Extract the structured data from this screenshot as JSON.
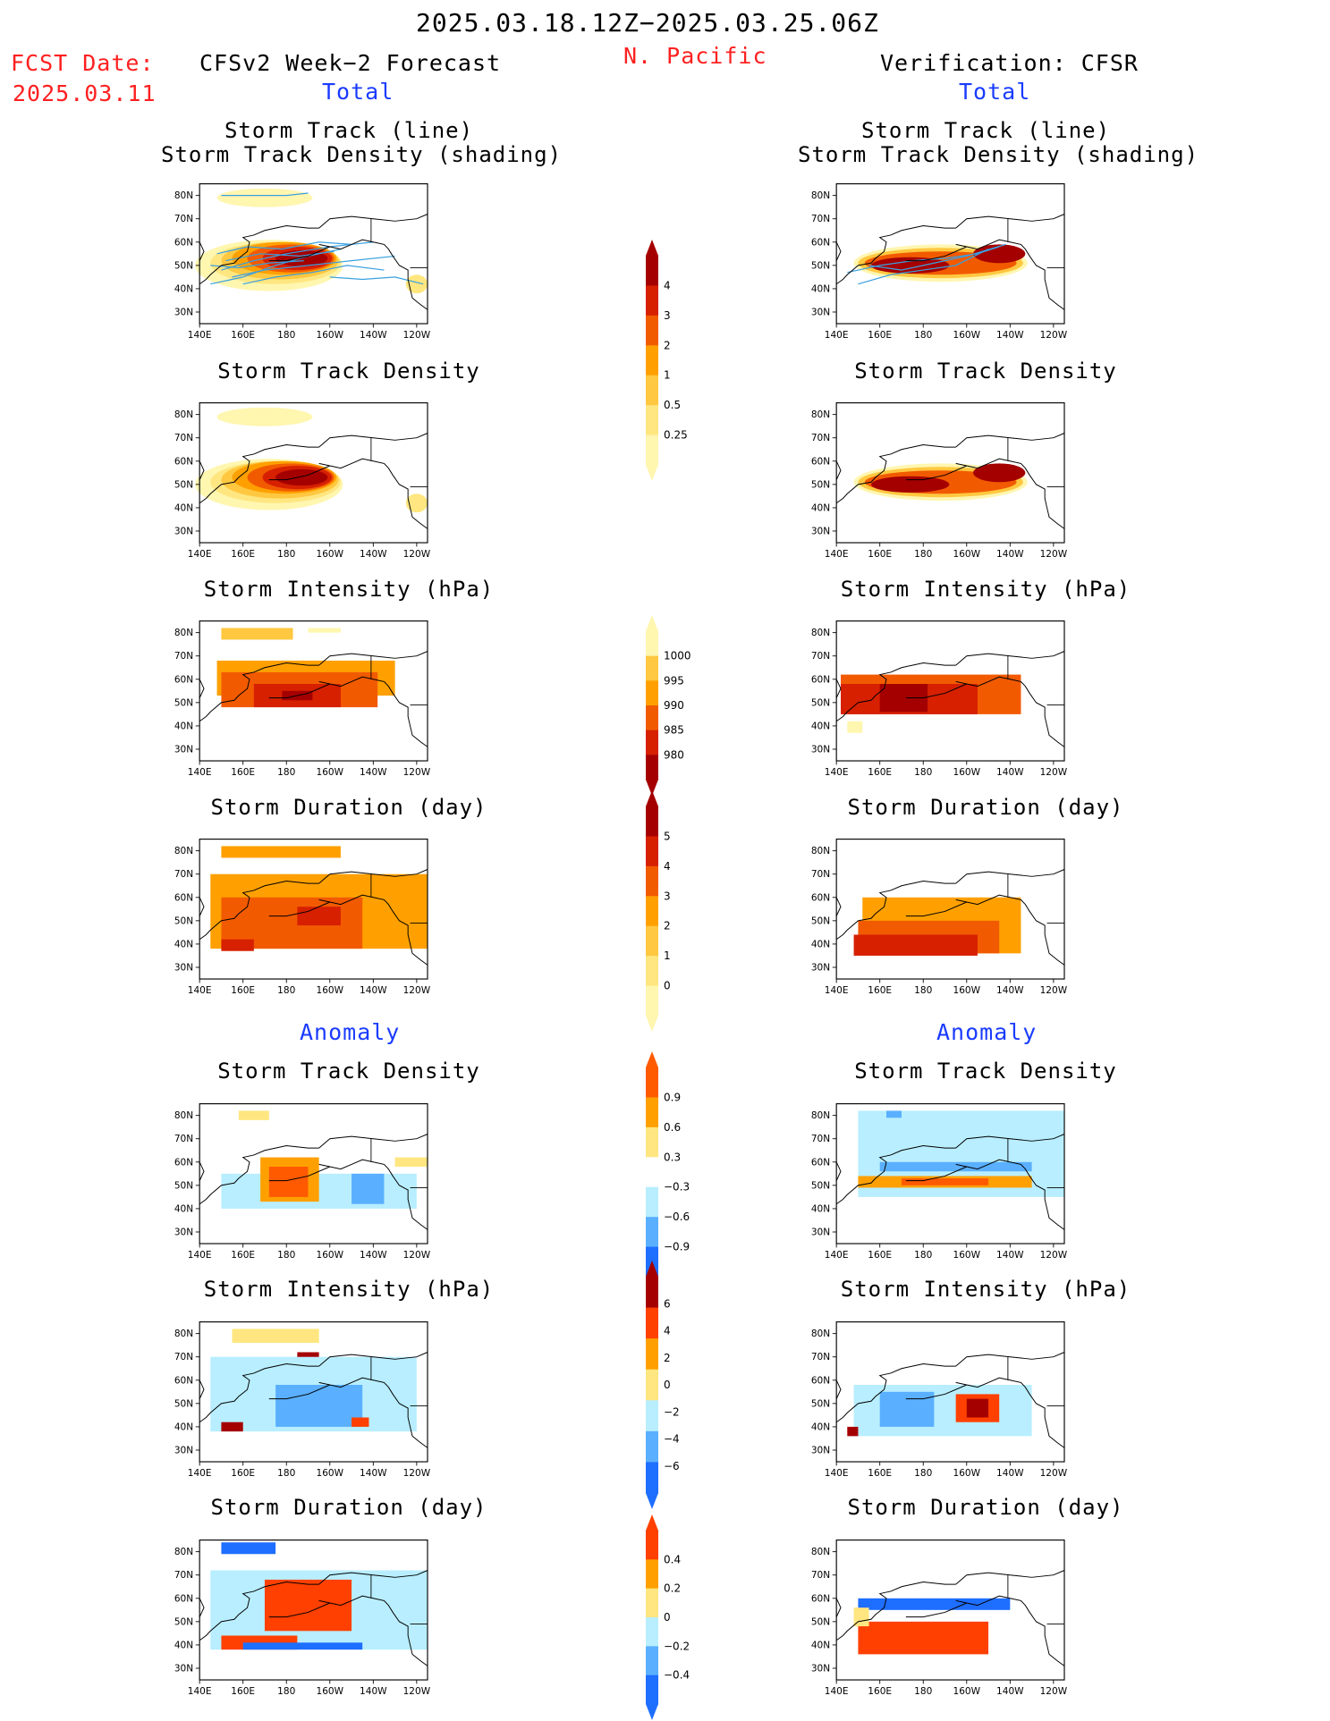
{
  "header": {
    "date_range": "2025.03.18.12Z−2025.03.25.06Z",
    "region": "N. Pacific",
    "fcst_label": "FCST Date:",
    "fcst_date": "2025.03.11",
    "left_title": "CFSv2 Week−2 Forecast",
    "right_title": "Verification: CFSR",
    "total_label": "Total",
    "anomaly_label": "Anomaly"
  },
  "axes": {
    "lat_labels": [
      "80N",
      "70N",
      "60N",
      "50N",
      "40N",
      "30N"
    ],
    "lon_labels": [
      "140E",
      "160E",
      "180",
      "160W",
      "140W",
      "120W"
    ]
  },
  "panels": {
    "left": [
      {
        "title": "Storm Track (line)\nStorm Track Density (shading)",
        "field": "track_density",
        "section": "total",
        "overlay_tracks": true
      },
      {
        "title": "Storm Track Density",
        "field": "track_density",
        "section": "total"
      },
      {
        "title": "Storm Intensity (hPa)",
        "field": "intensity",
        "section": "total"
      },
      {
        "title": "Storm Duration (day)",
        "field": "duration",
        "section": "total"
      },
      {
        "title": "Storm Track Density",
        "field": "track_density_anom",
        "section": "anomaly"
      },
      {
        "title": "Storm Intensity (hPa)",
        "field": "intensity_anom",
        "section": "anomaly"
      },
      {
        "title": "Storm Duration (day)",
        "field": "duration_anom",
        "section": "anomaly"
      }
    ],
    "right": [
      {
        "title": "Storm Track (line)\nStorm Track Density (shading)",
        "field": "track_density",
        "section": "total",
        "overlay_tracks": true
      },
      {
        "title": "Storm Track Density",
        "field": "track_density",
        "section": "total"
      },
      {
        "title": "Storm Intensity (hPa)",
        "field": "intensity",
        "section": "total"
      },
      {
        "title": "Storm Duration (day)",
        "field": "duration",
        "section": "total"
      },
      {
        "title": "Storm Track Density",
        "field": "track_density_anom",
        "section": "anomaly"
      },
      {
        "title": "Storm Intensity (hPa)",
        "field": "intensity_anom",
        "section": "anomaly"
      },
      {
        "title": "Storm Duration (day)",
        "field": "duration_anom",
        "section": "anomaly"
      }
    ]
  },
  "colorbars": [
    {
      "name": "track-density",
      "labels": [
        "4",
        "3",
        "2",
        "1",
        "0.5",
        "0.25"
      ],
      "colors": [
        "#a50000",
        "#d62000",
        "#f25a00",
        "#ffa000",
        "#ffc840",
        "#ffe680",
        "#fff6b0"
      ]
    },
    {
      "name": "intensity",
      "labels": [
        "1000",
        "995",
        "990",
        "985",
        "980"
      ],
      "colors": [
        "#fff6b0",
        "#ffc840",
        "#ffa000",
        "#f25a00",
        "#d62000",
        "#a50000"
      ]
    },
    {
      "name": "duration",
      "labels": [
        "5",
        "4",
        "3",
        "2",
        "1",
        "0"
      ],
      "colors": [
        "#a50000",
        "#d62000",
        "#f25a00",
        "#ffa000",
        "#ffc840",
        "#ffe680",
        "#fff6b0"
      ]
    },
    {
      "name": "density-anomaly",
      "labels": [
        "0.9",
        "0.6",
        "0.3",
        "−0.3",
        "−0.6",
        "−0.9"
      ],
      "colors": [
        "#ff5a00",
        "#ffa000",
        "#ffe680",
        "#ffffff",
        "#b8eeff",
        "#5ab0ff",
        "#1e6eff"
      ]
    },
    {
      "name": "intensity-anomaly",
      "labels": [
        "6",
        "4",
        "2",
        "0",
        "−2",
        "−4",
        "−6"
      ],
      "colors": [
        "#a50000",
        "#ff4000",
        "#ffa000",
        "#ffe680",
        "#b8eeff",
        "#5ab0ff",
        "#1e6eff"
      ]
    },
    {
      "name": "duration-anomaly",
      "labels": [
        "0.4",
        "0.2",
        "0",
        "−0.2",
        "−0.4"
      ],
      "colors": [
        "#ff4000",
        "#ffa000",
        "#ffe680",
        "#b8eeff",
        "#5ab0ff",
        "#1e6eff"
      ]
    }
  ]
}
